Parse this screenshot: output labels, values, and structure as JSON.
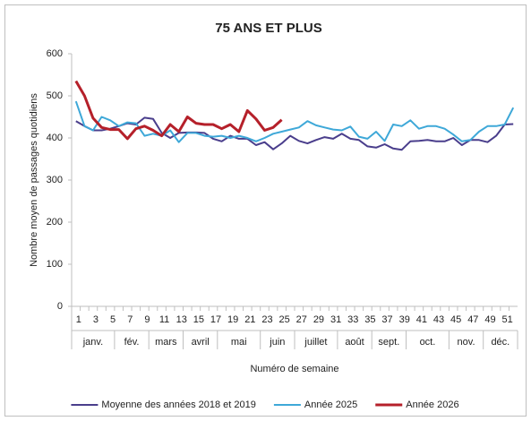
{
  "chart_data": {
    "type": "line",
    "title": "75 ANS ET PLUS",
    "y_label": "Nombre moyen de passages quotidiens",
    "x_label": "Numéro de semaine",
    "categories": [
      1,
      null,
      3,
      null,
      5,
      null,
      7,
      null,
      9,
      null,
      11,
      null,
      13,
      null,
      15,
      null,
      17,
      null,
      19,
      null,
      21,
      null,
      23,
      null,
      25,
      null,
      27,
      null,
      29,
      null,
      31,
      null,
      33,
      null,
      35,
      null,
      37,
      null,
      39,
      null,
      41,
      null,
      43,
      null,
      45,
      null,
      47,
      null,
      49,
      null,
      51,
      null
    ],
    "month_groups": [
      {
        "label": "janv.",
        "span": 5
      },
      {
        "label": "fév.",
        "span": 4
      },
      {
        "label": "mars",
        "span": 4
      },
      {
        "label": "avril",
        "span": 4
      },
      {
        "label": "mai",
        "span": 5
      },
      {
        "label": "juin",
        "span": 4
      },
      {
        "label": "juillet",
        "span": 5
      },
      {
        "label": "août",
        "span": 4
      },
      {
        "label": "sept.",
        "span": 4
      },
      {
        "label": "oct.",
        "span": 5
      },
      {
        "label": "nov.",
        "span": 4
      },
      {
        "label": "déc.",
        "span": 4
      }
    ],
    "ylim": [
      0,
      600
    ],
    "yticks": [
      0,
      100,
      200,
      300,
      400,
      500,
      600
    ],
    "grid": false,
    "legend": "bottom",
    "series": [
      {
        "name": "Moyenne des années 2018 et 2019",
        "color": "#4a3e8c",
        "width": 2,
        "values": [
          440,
          428,
          418,
          418,
          422,
          428,
          435,
          432,
          448,
          445,
          412,
          400,
          412,
          413,
          413,
          412,
          398,
          392,
          405,
          398,
          398,
          383,
          390,
          373,
          387,
          405,
          393,
          387,
          395,
          402,
          398,
          410,
          398,
          395,
          380,
          377,
          385,
          375,
          372,
          392,
          393,
          395,
          392,
          392,
          400,
          383,
          395,
          395,
          390,
          405,
          432,
          433
        ]
      },
      {
        "name": "Année 2025",
        "color": "#3ea8d8",
        "width": 2,
        "values": [
          487,
          428,
          418,
          450,
          442,
          428,
          437,
          435,
          405,
          410,
          405,
          418,
          390,
          412,
          412,
          405,
          403,
          405,
          400,
          405,
          400,
          392,
          400,
          410,
          415,
          420,
          425,
          440,
          430,
          425,
          420,
          418,
          427,
          403,
          398,
          415,
          393,
          432,
          428,
          442,
          422,
          428,
          428,
          422,
          408,
          392,
          395,
          415,
          428,
          428,
          432,
          472
        ]
      },
      {
        "name": "Année 2026",
        "color": "#b5202a",
        "width": 3,
        "values": [
          535,
          500,
          447,
          425,
          420,
          420,
          398,
          422,
          428,
          418,
          405,
          432,
          415,
          450,
          435,
          432,
          432,
          422,
          432,
          415,
          465,
          445,
          418,
          425,
          443,
          null,
          null,
          null,
          null,
          null,
          null,
          null,
          null,
          null,
          null,
          null,
          null,
          null,
          null,
          null,
          null,
          null,
          null,
          null,
          null,
          null,
          null,
          null,
          null,
          null,
          null,
          null
        ]
      }
    ]
  }
}
